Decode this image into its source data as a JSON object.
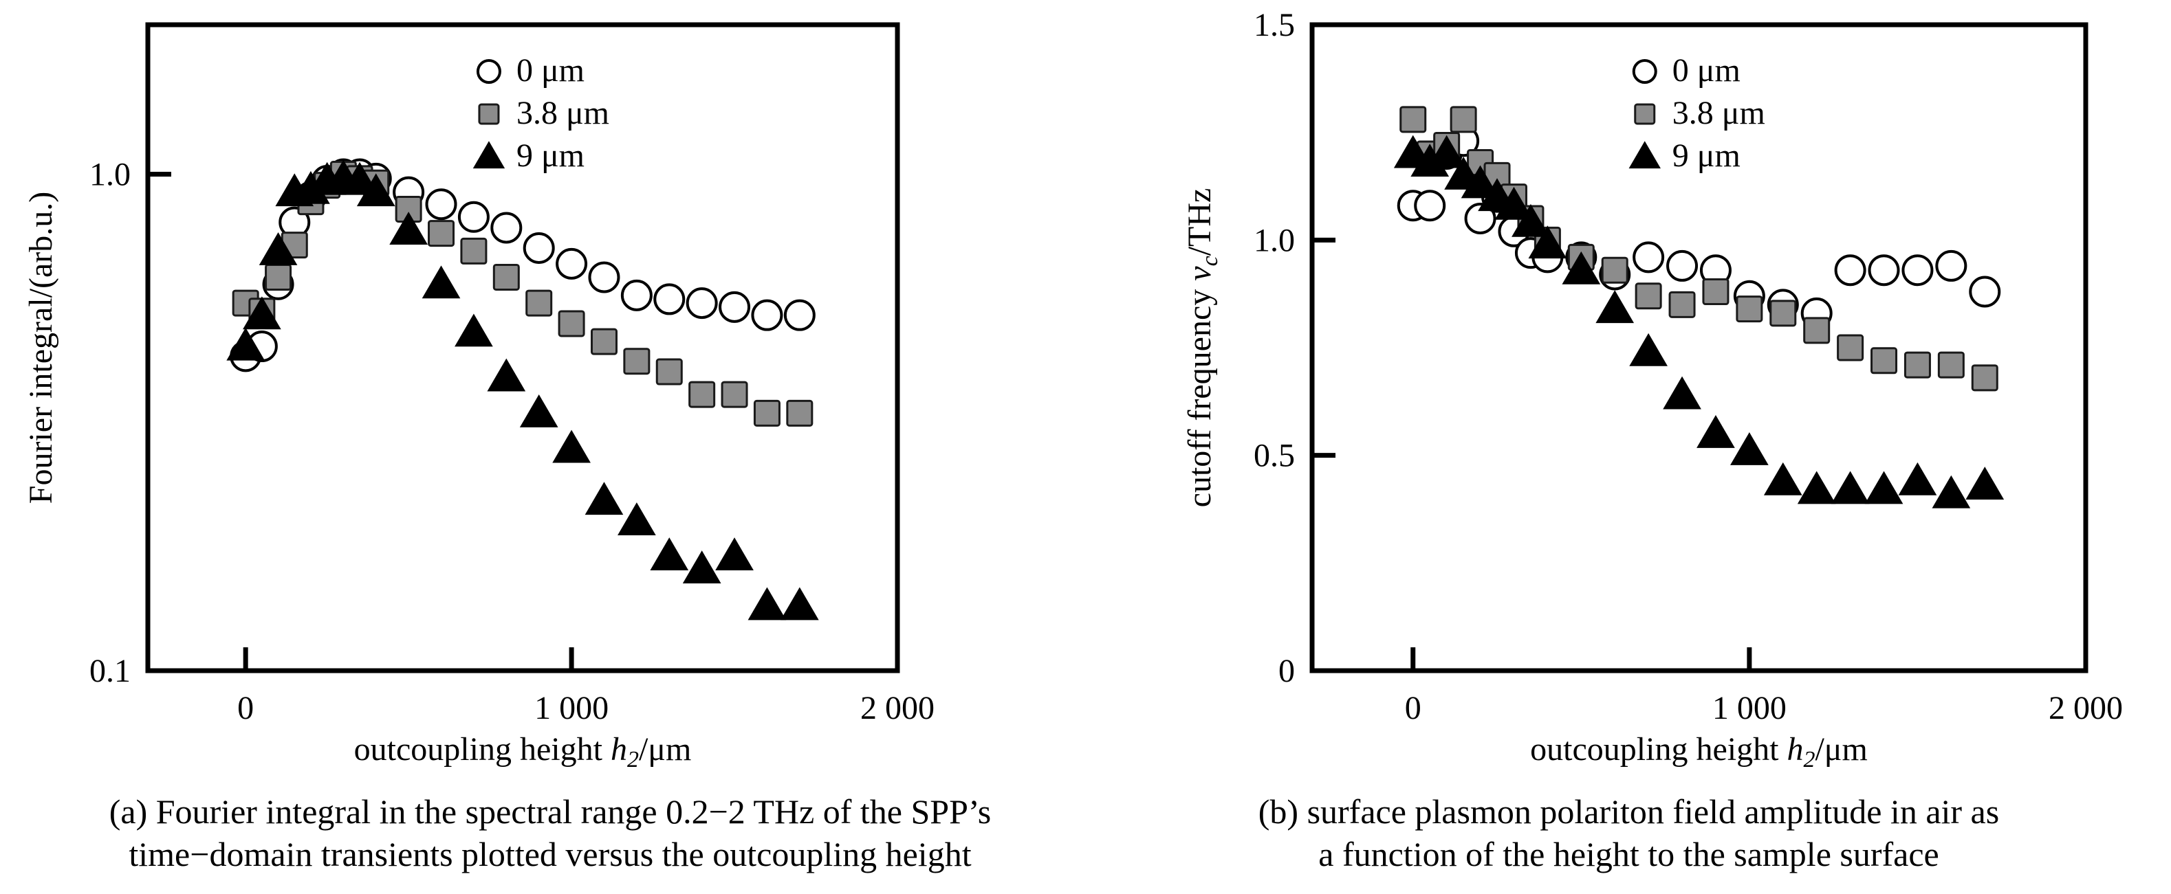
{
  "colors": {
    "axis": "#000000",
    "open_marker_stroke": "#000000",
    "square_fill": "#8c8c8c",
    "square_stroke": "#1a1a1a",
    "triangle_fill": "#000000"
  },
  "legend_symbols": {
    "0 μm": "○",
    "3.8 μm": "■",
    "9 μm": "▲"
  },
  "captions": {
    "a_line1": "(a) Fourier integral in the spectral range 0.2−2 THz of the SPP’s",
    "a_line2": "time−domain transients plotted versus the outcoupling height",
    "b_line1": "(b) surface plasmon polariton field amplitude in air as",
    "b_line2": "a function of the height to the sample surface"
  },
  "chart_data": [
    {
      "type": "scatter",
      "id": "a",
      "xlabel": "outcoupling height h2/μm",
      "xlabel_parts": [
        "outcoupling height ",
        "h",
        "2",
        "/μm"
      ],
      "ylabel": "Fourier integral/(arb.u.)",
      "xlim": [
        -300,
        2000
      ],
      "ylim": [
        0.1,
        2.0
      ],
      "yscale": "log",
      "xticks": [
        0,
        1000,
        2000
      ],
      "xtick_labels": [
        "0",
        "1 000",
        "2 000"
      ],
      "yticks": [
        0.1,
        1.0
      ],
      "ytick_labels": [
        "0.1",
        "1.0"
      ],
      "grid": false,
      "legend_position": "top-center",
      "series": [
        {
          "name": "0 μm",
          "marker": "circle-open",
          "x": [
            0,
            50,
            100,
            150,
            200,
            250,
            300,
            350,
            400,
            500,
            600,
            700,
            800,
            900,
            1000,
            1100,
            1200,
            1300,
            1400,
            1500,
            1600,
            1700
          ],
          "y": [
            0.43,
            0.45,
            0.6,
            0.8,
            0.9,
            0.97,
            1.0,
            1.0,
            0.98,
            0.92,
            0.87,
            0.82,
            0.78,
            0.71,
            0.66,
            0.62,
            0.57,
            0.56,
            0.55,
            0.54,
            0.52,
            0.52
          ]
        },
        {
          "name": "3.8 μm",
          "marker": "square",
          "x": [
            0,
            50,
            100,
            150,
            200,
            250,
            300,
            350,
            400,
            500,
            600,
            700,
            800,
            900,
            1000,
            1100,
            1200,
            1300,
            1400,
            1500,
            1600,
            1700
          ],
          "y": [
            0.55,
            0.53,
            0.62,
            0.72,
            0.88,
            0.95,
            1.0,
            0.98,
            0.96,
            0.85,
            0.76,
            0.7,
            0.62,
            0.55,
            0.5,
            0.46,
            0.42,
            0.4,
            0.36,
            0.36,
            0.33,
            0.33
          ]
        },
        {
          "name": "9 μm",
          "marker": "triangle",
          "x": [
            0,
            50,
            100,
            150,
            200,
            250,
            300,
            350,
            400,
            500,
            600,
            700,
            800,
            900,
            1000,
            1100,
            1200,
            1300,
            1400,
            1500,
            1600,
            1700
          ],
          "y": [
            0.45,
            0.52,
            0.7,
            0.92,
            0.93,
            0.97,
            0.98,
            0.97,
            0.92,
            0.77,
            0.6,
            0.48,
            0.39,
            0.33,
            0.28,
            0.22,
            0.2,
            0.17,
            0.16,
            0.17,
            0.135,
            0.135
          ]
        }
      ]
    },
    {
      "type": "scatter",
      "id": "b",
      "xlabel": "outcoupling height h2/μm",
      "xlabel_parts": [
        "outcoupling height ",
        "h",
        "2",
        "/μm"
      ],
      "ylabel": "cutoff frequency νc/THz",
      "ylabel_parts": [
        "cutoff frequency ",
        "ν",
        "c",
        "/THz"
      ],
      "xlim": [
        -300,
        2000
      ],
      "ylim": [
        0,
        1.5
      ],
      "yscale": "linear",
      "xticks": [
        0,
        1000,
        2000
      ],
      "xtick_labels": [
        "0",
        "1 000",
        "2 000"
      ],
      "yticks": [
        0,
        0.5,
        1.0,
        1.5
      ],
      "ytick_labels": [
        "0",
        "0.5",
        "1.0",
        "1.5"
      ],
      "grid": false,
      "legend_position": "top-center",
      "series": [
        {
          "name": "0 μm",
          "marker": "circle-open",
          "x": [
            0,
            50,
            100,
            150,
            200,
            250,
            300,
            350,
            400,
            500,
            600,
            700,
            800,
            900,
            1000,
            1100,
            1200,
            1300,
            1400,
            1500,
            1600,
            1700
          ],
          "y": [
            1.08,
            1.08,
            1.2,
            1.23,
            1.05,
            1.1,
            1.02,
            0.97,
            0.96,
            0.96,
            0.92,
            0.96,
            0.94,
            0.93,
            0.87,
            0.85,
            0.83,
            0.93,
            0.93,
            0.93,
            0.94,
            0.88
          ]
        },
        {
          "name": "3.8 μm",
          "marker": "square",
          "x": [
            0,
            50,
            100,
            150,
            200,
            250,
            300,
            350,
            400,
            500,
            600,
            700,
            800,
            900,
            1000,
            1100,
            1200,
            1300,
            1400,
            1500,
            1600,
            1700
          ],
          "y": [
            1.28,
            1.2,
            1.22,
            1.28,
            1.18,
            1.15,
            1.1,
            1.05,
            1.0,
            0.96,
            0.93,
            0.87,
            0.85,
            0.88,
            0.84,
            0.83,
            0.79,
            0.75,
            0.72,
            0.71,
            0.71,
            0.68
          ]
        },
        {
          "name": "9 μm",
          "marker": "triangle",
          "x": [
            0,
            50,
            100,
            150,
            200,
            250,
            300,
            350,
            400,
            500,
            600,
            700,
            800,
            900,
            1000,
            1100,
            1200,
            1300,
            1400,
            1500,
            1600,
            1700
          ],
          "y": [
            1.2,
            1.18,
            1.2,
            1.15,
            1.13,
            1.1,
            1.08,
            1.04,
            0.99,
            0.93,
            0.84,
            0.74,
            0.64,
            0.55,
            0.51,
            0.44,
            0.42,
            0.42,
            0.42,
            0.44,
            0.41,
            0.43
          ]
        }
      ]
    }
  ]
}
